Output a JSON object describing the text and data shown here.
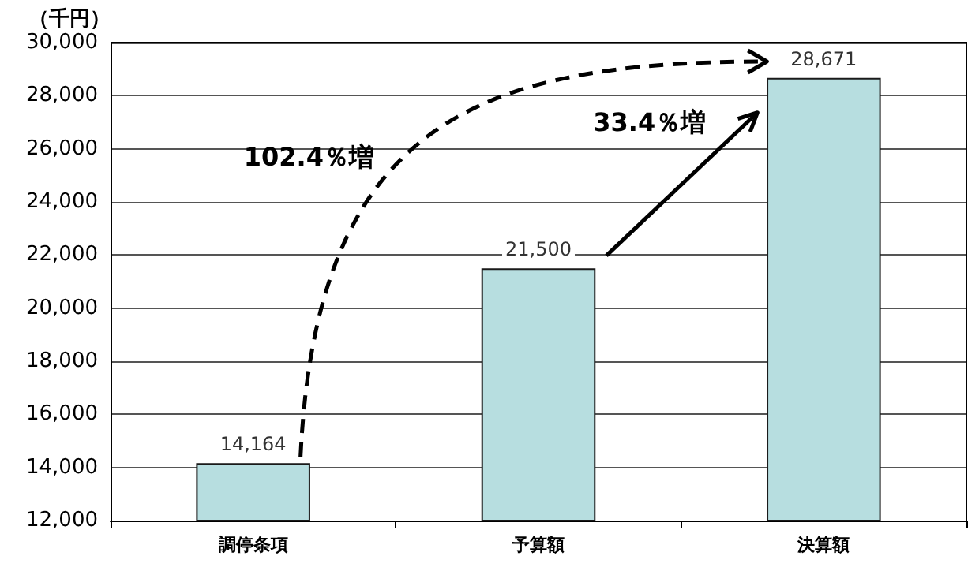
{
  "chart_data": {
    "type": "bar",
    "ylabel": "（千円）",
    "categories": [
      "調停条項",
      "予算額",
      "決算額"
    ],
    "values": [
      14164,
      21500,
      28671
    ],
    "color": "#b7dee0",
    "value_labels": [
      "14,164",
      "21,500",
      "28,671"
    ],
    "ylim": [
      12000,
      30000
    ],
    "yticks": [
      {
        "value": 12000,
        "label": "12,000"
      },
      {
        "value": 14000,
        "label": "14,000"
      },
      {
        "value": 16000,
        "label": "16,000"
      },
      {
        "value": 18000,
        "label": "18,000"
      },
      {
        "value": 20000,
        "label": "20,000"
      },
      {
        "value": 22000,
        "label": "22,000"
      },
      {
        "value": 24000,
        "label": "24,000"
      },
      {
        "value": 26000,
        "label": "26,000"
      },
      {
        "value": 28000,
        "label": "28,000"
      },
      {
        "value": 30000,
        "label": "30,000"
      }
    ],
    "grid": "y",
    "annotations": [
      "102.4％増",
      "33.4％増"
    ]
  }
}
